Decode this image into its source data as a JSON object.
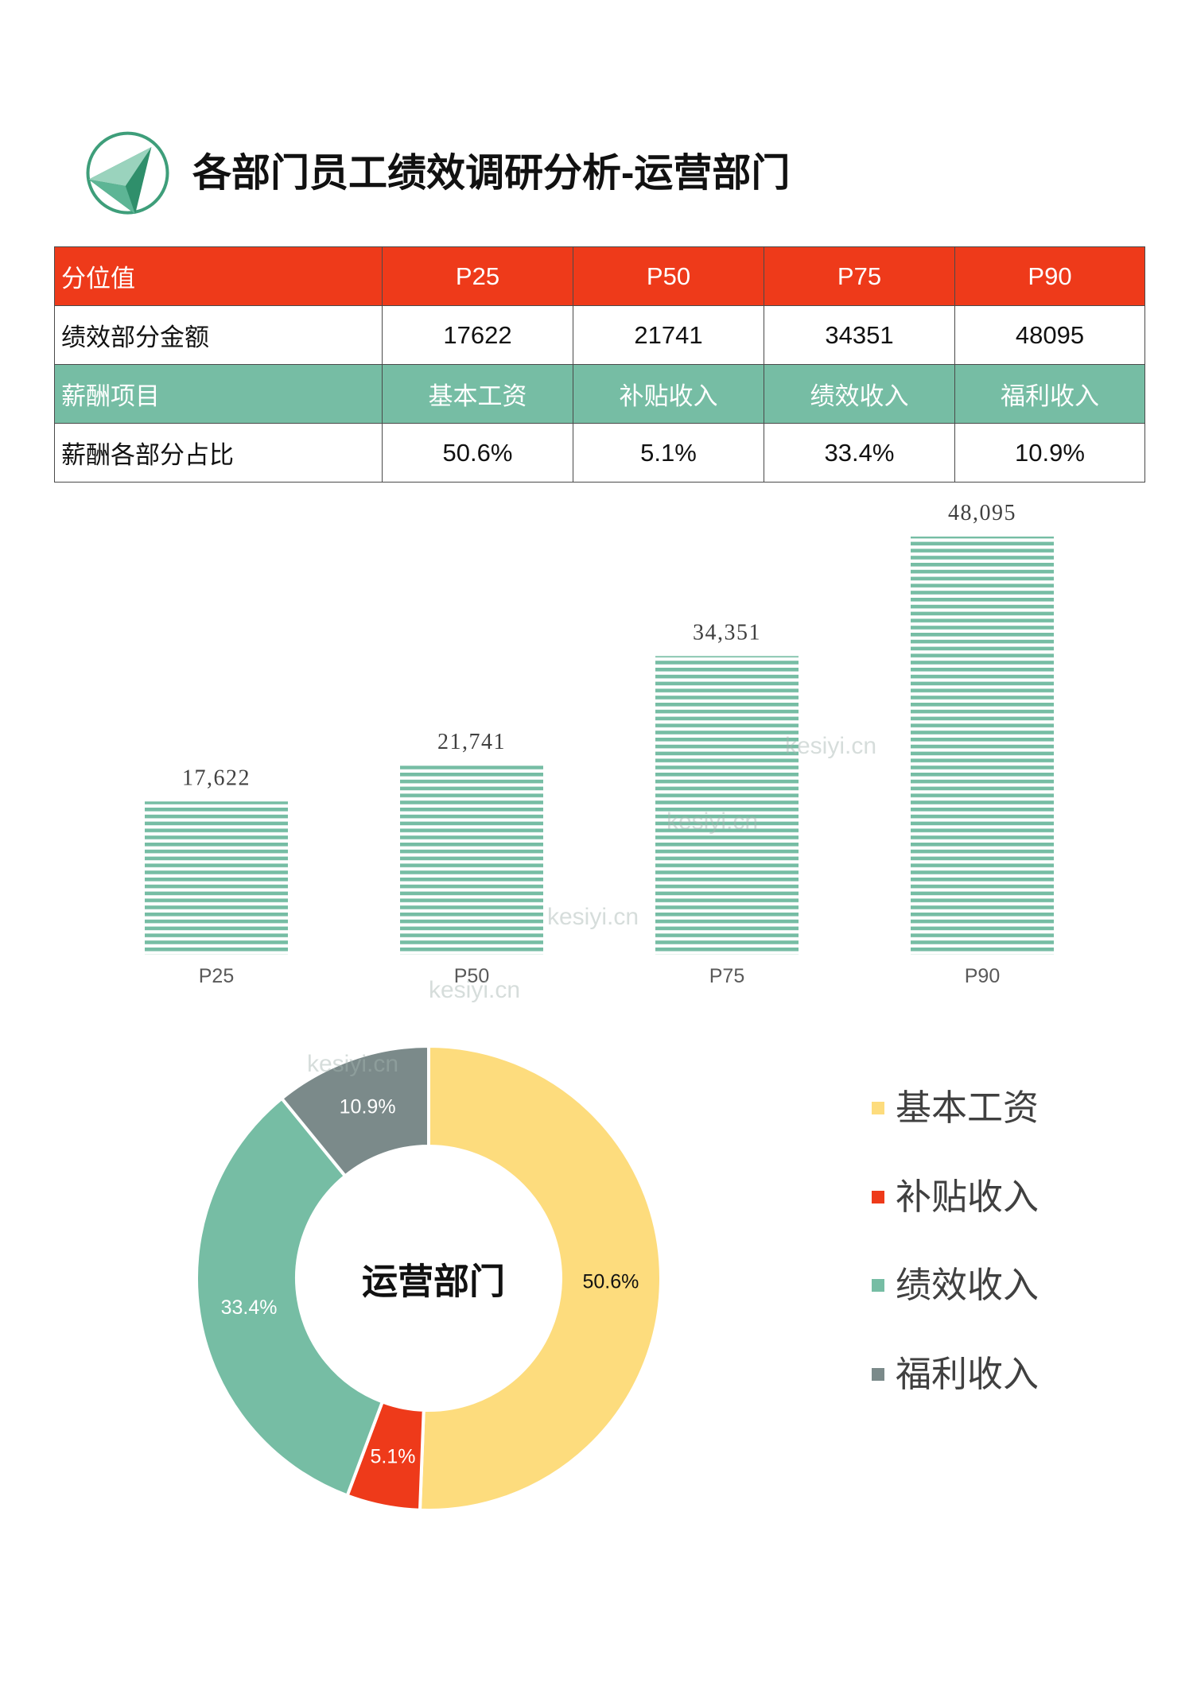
{
  "header": {
    "title": "各部门员工绩效调研分析-运营部门"
  },
  "icons": {
    "logo": "pyramid-logo-icon"
  },
  "table": {
    "rows": [
      {
        "label": "分位值",
        "cells": [
          "P25",
          "P50",
          "P75",
          "P90"
        ],
        "fill": "#EE3A1A"
      },
      {
        "label": "绩效部分金额",
        "cells": [
          "17622",
          "21741",
          "34351",
          "48095"
        ]
      },
      {
        "label": "薪酬项目",
        "cells": [
          "基本工资",
          "补贴收入",
          "绩效收入",
          "福利收入"
        ],
        "fill": "#76BDA4"
      },
      {
        "label": "薪酬各部分占比",
        "cells": [
          "50.6%",
          "5.1%",
          "33.4%",
          "10.9%"
        ]
      }
    ]
  },
  "chart_data": [
    {
      "type": "bar",
      "categories": [
        "P25",
        "P50",
        "P75",
        "P90"
      ],
      "values": [
        17622,
        21741,
        34351,
        48095
      ],
      "data_labels": [
        "17,622",
        "21,741",
        "34,351",
        "48,095"
      ],
      "color": "#76BDA4",
      "grid": false
    },
    {
      "type": "pie",
      "donut": true,
      "center_label": "运营部门",
      "labels": [
        "基本工资",
        "补贴收入",
        "绩效收入",
        "福利收入"
      ],
      "values": [
        50.6,
        5.1,
        33.4,
        10.9
      ],
      "data_labels": [
        "50.6%",
        "5.1%",
        "33.4%",
        "10.9%"
      ],
      "colors": [
        "#FDDC7D",
        "#EE3A1A",
        "#76BDA4",
        "#7B8A8A"
      ],
      "label_colors": [
        "#111111",
        "#FFFFFF",
        "#FFFFFF",
        "#FFFFFF"
      ],
      "legend": "right"
    }
  ],
  "watermark": {
    "text": "kesiyi.cn"
  }
}
